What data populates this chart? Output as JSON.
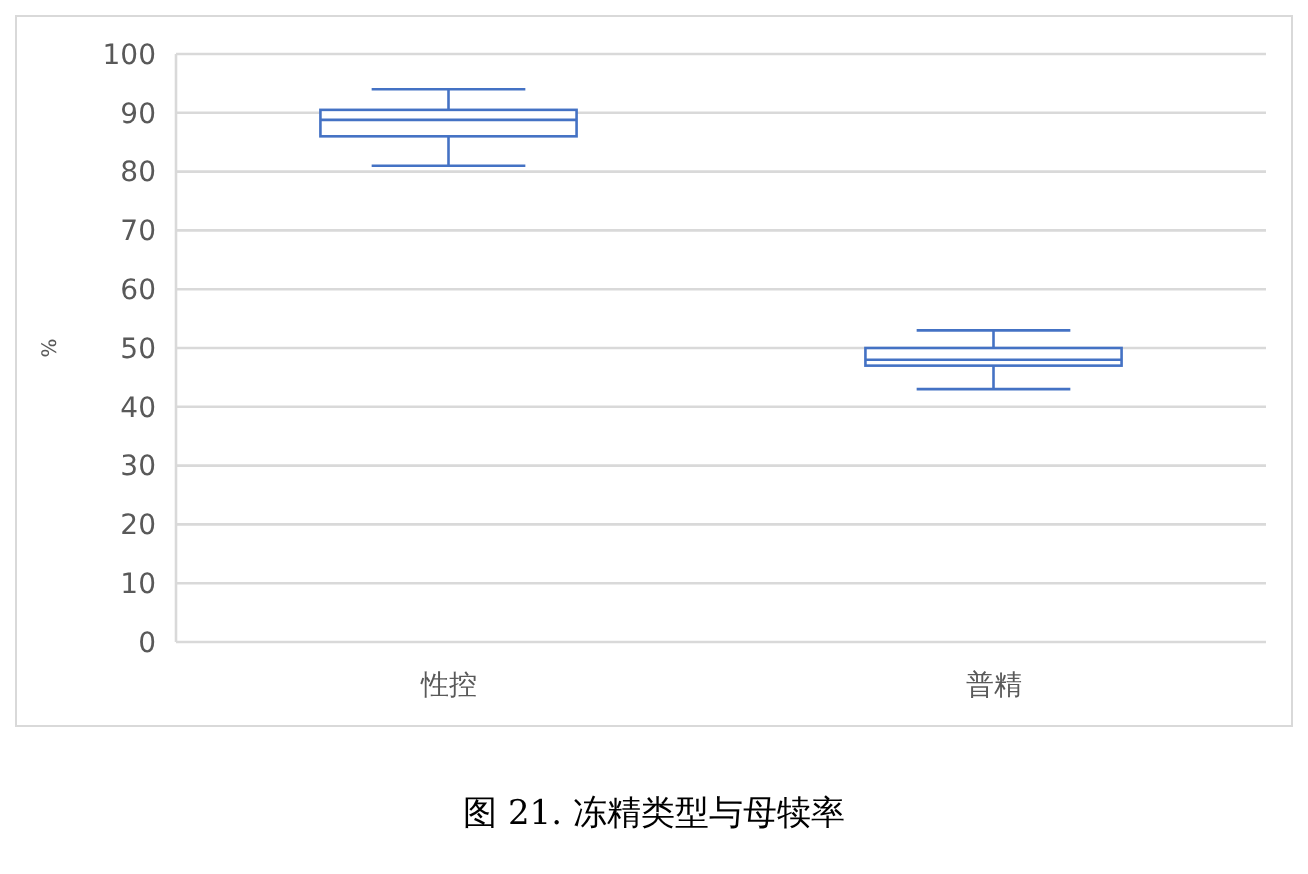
{
  "chart_data": {
    "type": "box",
    "ylabel": "%",
    "annotations": [
      "图 21. 冻精类型与母犊率"
    ],
    "categories": [
      "性控",
      "普精"
    ],
    "boxes": [
      {
        "low": 81,
        "q1": 86,
        "median": 88.8,
        "q3": 90.5,
        "high": 94
      },
      {
        "low": 43,
        "q1": 47,
        "median": 48,
        "q3": 50,
        "high": 53
      }
    ],
    "color": "#4472c4",
    "ylim": [
      0,
      100
    ],
    "yticks": [
      0,
      10,
      20,
      30,
      40,
      50,
      60,
      70,
      80,
      90,
      100
    ],
    "grid": "y"
  }
}
